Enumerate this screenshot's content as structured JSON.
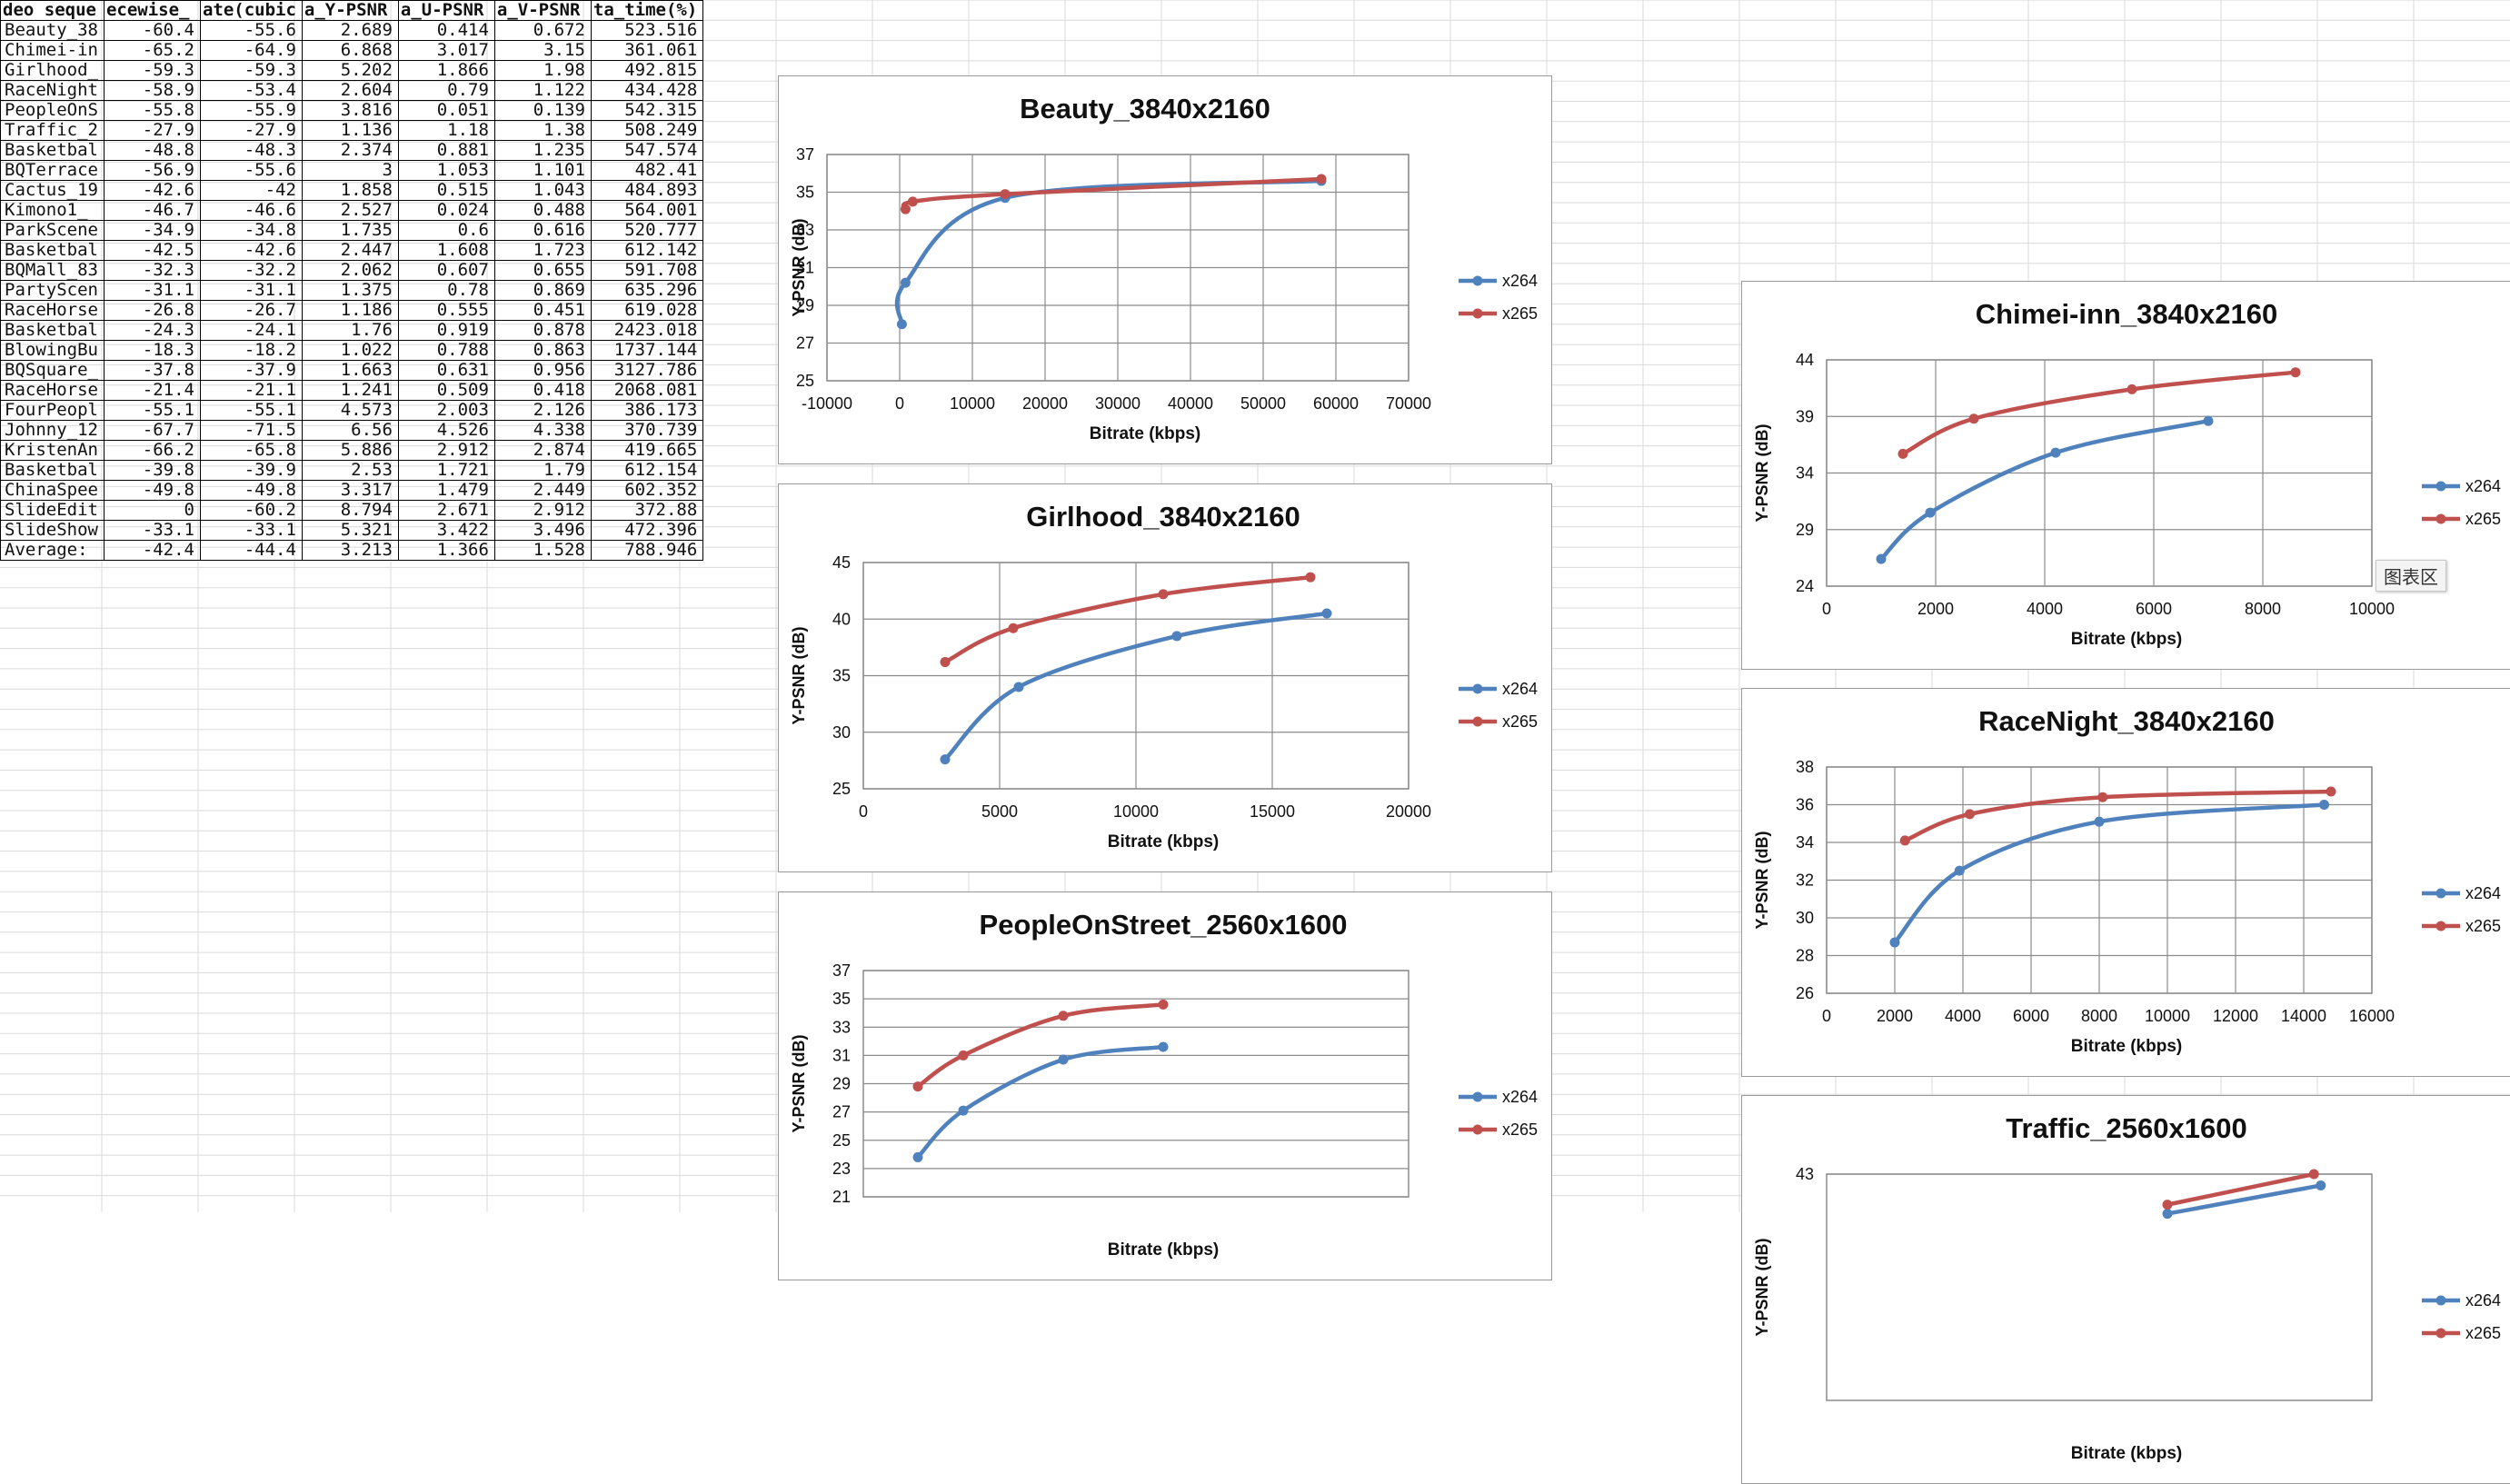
{
  "spreadsheet": {
    "headers": [
      "deo seque",
      "ecewise_",
      "ate(cubic",
      "a_Y-PSNR",
      "a_U-PSNR",
      "a_V-PSNR",
      "ta_time(%)"
    ],
    "rows": [
      [
        "Beauty_38",
        "-60.4",
        "-55.6",
        "2.689",
        "0.414",
        "0.672",
        "523.516"
      ],
      [
        "Chimei-in",
        "-65.2",
        "-64.9",
        "6.868",
        "3.017",
        "3.15",
        "361.061"
      ],
      [
        "Girlhood_",
        "-59.3",
        "-59.3",
        "5.202",
        "1.866",
        "1.98",
        "492.815"
      ],
      [
        "RaceNight",
        "-58.9",
        "-53.4",
        "2.604",
        "0.79",
        "1.122",
        "434.428"
      ],
      [
        "PeopleOnS",
        "-55.8",
        "-55.9",
        "3.816",
        "0.051",
        "0.139",
        "542.315"
      ],
      [
        "Traffic_2",
        "-27.9",
        "-27.9",
        "1.136",
        "1.18",
        "1.38",
        "508.249"
      ],
      [
        "Basketbal",
        "-48.8",
        "-48.3",
        "2.374",
        "0.881",
        "1.235",
        "547.574"
      ],
      [
        "BQTerrace",
        "-56.9",
        "-55.6",
        "3",
        "1.053",
        "1.101",
        "482.41"
      ],
      [
        "Cactus_19",
        "-42.6",
        "-42",
        "1.858",
        "0.515",
        "1.043",
        "484.893"
      ],
      [
        "Kimono1_",
        "-46.7",
        "-46.6",
        "2.527",
        "0.024",
        "0.488",
        "564.001"
      ],
      [
        "ParkScene",
        "-34.9",
        "-34.8",
        "1.735",
        "0.6",
        "0.616",
        "520.777"
      ],
      [
        "Basketbal",
        "-42.5",
        "-42.6",
        "2.447",
        "1.608",
        "1.723",
        "612.142"
      ],
      [
        "BQMall_83",
        "-32.3",
        "-32.2",
        "2.062",
        "0.607",
        "0.655",
        "591.708"
      ],
      [
        "PartyScen",
        "-31.1",
        "-31.1",
        "1.375",
        "0.78",
        "0.869",
        "635.296"
      ],
      [
        "RaceHorse",
        "-26.8",
        "-26.7",
        "1.186",
        "0.555",
        "0.451",
        "619.028"
      ],
      [
        "Basketbal",
        "-24.3",
        "-24.1",
        "1.76",
        "0.919",
        "0.878",
        "2423.018"
      ],
      [
        "BlowingBu",
        "-18.3",
        "-18.2",
        "1.022",
        "0.788",
        "0.863",
        "1737.144"
      ],
      [
        "BQSquare_",
        "-37.8",
        "-37.9",
        "1.663",
        "0.631",
        "0.956",
        "3127.786"
      ],
      [
        "RaceHorse",
        "-21.4",
        "-21.1",
        "1.241",
        "0.509",
        "0.418",
        "2068.081"
      ],
      [
        "FourPeopl",
        "-55.1",
        "-55.1",
        "4.573",
        "2.003",
        "2.126",
        "386.173"
      ],
      [
        "Johnny_12",
        "-67.7",
        "-71.5",
        "6.56",
        "4.526",
        "4.338",
        "370.739"
      ],
      [
        "KristenAn",
        "-66.2",
        "-65.8",
        "5.886",
        "2.912",
        "2.874",
        "419.665"
      ],
      [
        "Basketbal",
        "-39.8",
        "-39.9",
        "2.53",
        "1.721",
        "1.79",
        "612.154"
      ],
      [
        "ChinaSpee",
        "-49.8",
        "-49.8",
        "3.317",
        "1.479",
        "2.449",
        "602.352"
      ],
      [
        "SlideEdit",
        "0",
        "-60.2",
        "8.794",
        "2.671",
        "2.912",
        "372.88"
      ],
      [
        "SlideShow",
        "-33.1",
        "-33.1",
        "5.321",
        "3.422",
        "3.496",
        "472.396"
      ],
      [
        "Average:",
        "-42.4",
        "-44.4",
        "3.213",
        "1.366",
        "1.528",
        "788.946"
      ]
    ]
  },
  "tooltip_text": "图表区",
  "chart_data": [
    {
      "type": "line",
      "title": "Beauty_3840x2160",
      "xlabel": "Bitrate (kbps)",
      "ylabel": "Y-PSNR (dB)",
      "xlim": [
        -10000,
        70000
      ],
      "ylim": [
        25,
        37
      ],
      "xticks": [
        -10000,
        0,
        10000,
        20000,
        30000,
        40000,
        50000,
        60000,
        70000
      ],
      "yticks": [
        25,
        27,
        29,
        31,
        33,
        35,
        37
      ],
      "legend": "right",
      "grid": true,
      "series": [
        {
          "name": "x264",
          "color": "#4f81bd",
          "x": [
            300,
            800,
            14500,
            58000
          ],
          "y": [
            28.0,
            30.2,
            34.7,
            35.6
          ]
        },
        {
          "name": "x265",
          "color": "#c0504d",
          "x": [
            800,
            1800,
            14500,
            58000
          ],
          "y": [
            34.1,
            34.5,
            34.9,
            35.7
          ]
        }
      ]
    },
    {
      "type": "line",
      "title": "Girlhood_3840x2160",
      "xlabel": "Bitrate (kbps)",
      "ylabel": "Y-PSNR (dB)",
      "xlim": [
        0,
        20000
      ],
      "ylim": [
        25,
        45
      ],
      "xticks": [
        0,
        5000,
        10000,
        15000,
        20000
      ],
      "yticks": [
        25,
        30,
        35,
        40,
        45
      ],
      "legend": "right",
      "grid": true,
      "series": [
        {
          "name": "x264",
          "color": "#4f81bd",
          "x": [
            3000,
            5700,
            11500,
            17000
          ],
          "y": [
            27.6,
            34.0,
            38.5,
            40.5
          ]
        },
        {
          "name": "x265",
          "color": "#c0504d",
          "x": [
            3000,
            5500,
            11000,
            16400
          ],
          "y": [
            36.2,
            39.2,
            42.2,
            43.7
          ]
        }
      ]
    },
    {
      "type": "line",
      "title": "PeopleOnStreet_2560x1600",
      "xlabel": "Bitrate (kbps)",
      "ylabel": "Y-PSNR (dB)",
      "xlim": [
        0,
        30000
      ],
      "ylim": [
        21,
        37
      ],
      "xticks": [],
      "yticks": [
        21,
        23,
        25,
        27,
        29,
        31,
        33,
        35,
        37
      ],
      "legend": "right",
      "grid": true,
      "series": [
        {
          "name": "x264",
          "color": "#4f81bd",
          "x": [
            3000,
            5500,
            11000,
            16500
          ],
          "y": [
            23.8,
            27.1,
            30.7,
            31.6
          ]
        },
        {
          "name": "x265",
          "color": "#c0504d",
          "x": [
            3000,
            5500,
            11000,
            16500
          ],
          "y": [
            28.8,
            31.0,
            33.8,
            34.6
          ]
        }
      ]
    },
    {
      "type": "line",
      "title": "Chimei-inn_3840x2160",
      "xlabel": "Bitrate (kbps)",
      "ylabel": "Y-PSNR (dB)",
      "xlim": [
        0,
        10000
      ],
      "ylim": [
        24,
        44
      ],
      "xticks": [
        0,
        2000,
        4000,
        6000,
        8000,
        10000
      ],
      "yticks": [
        24,
        29,
        34,
        39,
        44
      ],
      "legend": "right",
      "grid": true,
      "series": [
        {
          "name": "x264",
          "color": "#4f81bd",
          "x": [
            1000,
            1900,
            4200,
            7000
          ],
          "y": [
            26.4,
            30.5,
            35.8,
            38.6
          ]
        },
        {
          "name": "x265",
          "color": "#c0504d",
          "x": [
            1400,
            2700,
            5600,
            8600
          ],
          "y": [
            35.7,
            38.8,
            41.4,
            42.9
          ]
        }
      ]
    },
    {
      "type": "line",
      "title": "RaceNight_3840x2160",
      "xlabel": "Bitrate (kbps)",
      "ylabel": "Y-PSNR (dB)",
      "xlim": [
        0,
        16000
      ],
      "ylim": [
        26,
        38
      ],
      "xticks": [
        0,
        2000,
        4000,
        6000,
        8000,
        10000,
        12000,
        14000,
        16000
      ],
      "yticks": [
        26,
        28,
        30,
        32,
        34,
        36,
        38
      ],
      "legend": "right",
      "grid": true,
      "series": [
        {
          "name": "x264",
          "color": "#4f81bd",
          "x": [
            2000,
            3900,
            8000,
            14600
          ],
          "y": [
            28.7,
            32.5,
            35.1,
            36.0
          ]
        },
        {
          "name": "x265",
          "color": "#c0504d",
          "x": [
            2300,
            4200,
            8100,
            14800
          ],
          "y": [
            34.1,
            35.5,
            36.4,
            36.7
          ]
        }
      ]
    },
    {
      "type": "line",
      "title": "Traffic_2560x1600",
      "xlabel": "Bitrate (kbps)",
      "ylabel": "Y-PSNR (dB)",
      "xlim": [
        0,
        16000
      ],
      "ylim": [
        23,
        43
      ],
      "xticks": [],
      "yticks": [
        43
      ],
      "legend": "right",
      "grid": true,
      "series": [
        {
          "name": "x264",
          "color": "#4f81bd",
          "x": [
            10000,
            14500
          ],
          "y": [
            39.5,
            42.0
          ]
        },
        {
          "name": "x265",
          "color": "#c0504d",
          "x": [
            10000,
            14300
          ],
          "y": [
            40.3,
            43.0
          ]
        }
      ]
    }
  ]
}
